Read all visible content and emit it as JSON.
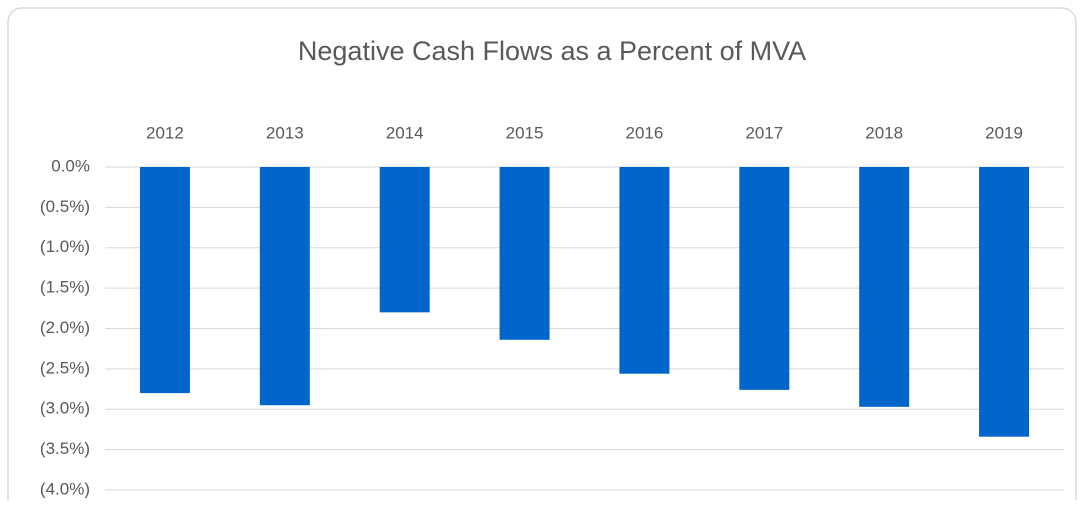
{
  "chart_data": {
    "type": "bar",
    "title": "Negative Cash Flows as a Percent of MVA",
    "categories": [
      "2012",
      "2013",
      "2014",
      "2015",
      "2016",
      "2017",
      "2018",
      "2019"
    ],
    "values": [
      -2.8,
      -2.95,
      -1.8,
      -2.14,
      -2.56,
      -2.76,
      -2.97,
      -3.34
    ],
    "color": "#0066cc",
    "ylim": [
      -4.0,
      0
    ],
    "yticks": [
      {
        "value": 0,
        "label": "0.0%"
      },
      {
        "value": -0.5,
        "label": "(0.5%)"
      },
      {
        "value": -1.0,
        "label": "(1.0%)"
      },
      {
        "value": -1.5,
        "label": "(1.5%)"
      },
      {
        "value": -2.0,
        "label": "(2.0%)"
      },
      {
        "value": -2.5,
        "label": "(2.5%)"
      },
      {
        "value": -3.0,
        "label": "(3.0%)"
      },
      {
        "value": -3.5,
        "label": "(3.5%)"
      },
      {
        "value": -4.0,
        "label": "(4.0%)"
      }
    ],
    "grid": true
  }
}
